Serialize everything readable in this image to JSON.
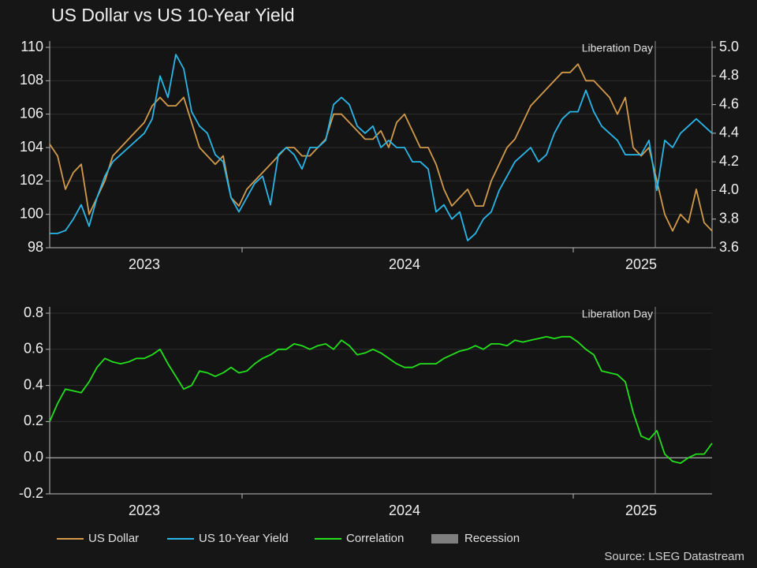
{
  "title": "US Dollar vs US 10-Year Yield",
  "source": "Source: LSEG Datastream",
  "recession_legend": {
    "name": "Recession",
    "color": "#7f7f7f"
  },
  "chart_data": [
    {
      "type": "line",
      "annotation": "Liberation Day",
      "categories": [
        null,
        null,
        null,
        null,
        null,
        null,
        null,
        null,
        null,
        null,
        null,
        null,
        "2023",
        null,
        null,
        null,
        null,
        null,
        null,
        null,
        null,
        null,
        null,
        null,
        null,
        null,
        null,
        null,
        null,
        null,
        null,
        null,
        null,
        null,
        null,
        null,
        null,
        null,
        null,
        null,
        null,
        null,
        null,
        null,
        null,
        "2024",
        null,
        null,
        null,
        null,
        null,
        null,
        null,
        null,
        null,
        null,
        null,
        null,
        null,
        null,
        null,
        null,
        null,
        null,
        null,
        null,
        null,
        null,
        null,
        null,
        null,
        null,
        null,
        null,
        null,
        "2025",
        null,
        null,
        null,
        null,
        null,
        null,
        null,
        null,
        null
      ],
      "series": [
        {
          "name": "US Dollar",
          "color": "#d29a4a",
          "values": [
            104.2,
            103.5,
            101.5,
            102.5,
            103,
            100,
            101,
            102,
            103.5,
            104,
            104.5,
            105,
            105.5,
            106.5,
            107,
            106.5,
            106.5,
            107,
            105.5,
            104,
            103.5,
            103,
            103.5,
            101,
            100.5,
            101.5,
            102,
            102.5,
            103,
            103.5,
            104,
            104,
            103.5,
            103.5,
            104,
            104.5,
            106,
            106,
            105.5,
            105,
            104.5,
            104.5,
            105,
            104,
            105.5,
            106,
            105,
            104,
            104,
            103,
            101.5,
            100.5,
            101,
            101.5,
            100.5,
            100.5,
            102,
            103,
            104,
            104.5,
            105.5,
            106.5,
            107,
            107.5,
            108,
            108.5,
            108.5,
            109,
            108,
            108,
            107.5,
            107,
            106,
            107,
            104,
            103.5,
            104,
            102,
            100,
            99,
            100,
            99.5,
            101.5,
            99.5,
            99
          ]
        },
        {
          "name": "US 10-Year Yield",
          "color": "#29b6e8",
          "axis": "y2",
          "values": [
            3.7,
            3.7,
            3.72,
            3.8,
            3.9,
            3.75,
            3.95,
            4.1,
            4.2,
            4.25,
            4.3,
            4.35,
            4.4,
            4.5,
            4.8,
            4.65,
            4.95,
            4.85,
            4.55,
            4.45,
            4.4,
            4.25,
            4.2,
            3.95,
            3.85,
            3.95,
            4.05,
            4.1,
            3.9,
            4.25,
            4.3,
            4.25,
            4.15,
            4.3,
            4.3,
            4.35,
            4.6,
            4.65,
            4.6,
            4.45,
            4.4,
            4.45,
            4.3,
            4.35,
            4.3,
            4.3,
            4.2,
            4.2,
            4.15,
            3.85,
            3.9,
            3.8,
            3.85,
            3.65,
            3.7,
            3.8,
            3.85,
            4.0,
            4.1,
            4.2,
            4.25,
            4.3,
            4.2,
            4.25,
            4.4,
            4.5,
            4.55,
            4.55,
            4.7,
            4.55,
            4.45,
            4.4,
            4.35,
            4.25,
            4.25,
            4.25,
            4.35,
            4.0,
            4.35,
            4.3,
            4.4,
            4.45,
            4.5,
            4.45,
            4.4
          ]
        }
      ],
      "ylim": [
        98,
        110
      ],
      "yticks": [
        98,
        100,
        102,
        104,
        106,
        108,
        110
      ],
      "y2lim": [
        3.6,
        5.0
      ],
      "y2ticks": [
        3.6,
        3.8,
        {
          "value": 4,
          "label": "4.0"
        },
        4.2,
        4.4,
        4.6,
        4.8,
        {
          "value": 5,
          "label": "5.0"
        }
      ],
      "grid": true
    },
    {
      "type": "line",
      "annotation": "Liberation Day",
      "categories": [
        null,
        null,
        null,
        null,
        null,
        null,
        null,
        null,
        null,
        null,
        null,
        null,
        "2023",
        null,
        null,
        null,
        null,
        null,
        null,
        null,
        null,
        null,
        null,
        null,
        null,
        null,
        null,
        null,
        null,
        null,
        null,
        null,
        null,
        null,
        null,
        null,
        null,
        null,
        null,
        null,
        null,
        null,
        null,
        null,
        null,
        "2024",
        null,
        null,
        null,
        null,
        null,
        null,
        null,
        null,
        null,
        null,
        null,
        null,
        null,
        null,
        null,
        null,
        null,
        null,
        null,
        null,
        null,
        null,
        null,
        null,
        null,
        null,
        null,
        null,
        null,
        "2025",
        null,
        null,
        null,
        null,
        null,
        null,
        null,
        null,
        null
      ],
      "series": [
        {
          "name": "Correlation",
          "color": "#22e01a",
          "values": [
            0.2,
            0.3,
            0.38,
            0.37,
            0.36,
            0.42,
            0.5,
            0.55,
            0.53,
            0.52,
            0.53,
            0.55,
            0.55,
            0.57,
            0.6,
            0.52,
            0.45,
            0.38,
            0.4,
            0.48,
            0.47,
            0.45,
            0.47,
            0.5,
            0.47,
            0.48,
            0.52,
            0.55,
            0.57,
            0.6,
            0.6,
            0.63,
            0.62,
            0.6,
            0.62,
            0.63,
            0.6,
            0.65,
            0.62,
            0.57,
            0.58,
            0.6,
            0.58,
            0.55,
            0.52,
            0.5,
            0.5,
            0.52,
            0.52,
            0.52,
            0.55,
            0.57,
            0.59,
            0.6,
            0.62,
            0.6,
            0.63,
            0.63,
            0.62,
            0.65,
            0.64,
            0.65,
            0.66,
            0.67,
            0.66,
            0.67,
            0.67,
            0.64,
            0.6,
            0.57,
            0.48,
            0.47,
            0.46,
            0.42,
            0.25,
            0.12,
            0.1,
            0.15,
            0.02,
            -0.02,
            -0.03,
            0.0,
            0.02,
            0.02,
            0.08
          ]
        }
      ],
      "ylim": [
        -0.2,
        0.8
      ],
      "yticks": [
        -0.2,
        {
          "value": 0,
          "label": "0.0"
        },
        0.2,
        0.4,
        0.6,
        0.8
      ],
      "grid": true
    }
  ]
}
